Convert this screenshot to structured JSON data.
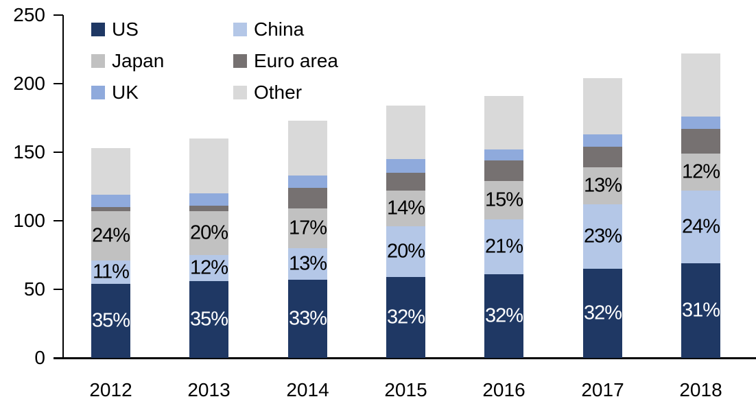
{
  "chart_data": {
    "type": "bar",
    "stacked": true,
    "title": "",
    "xlabel": "",
    "ylabel": "",
    "categories": [
      "2012",
      "2013",
      "2014",
      "2015",
      "2016",
      "2017",
      "2018"
    ],
    "series": [
      {
        "name": "US",
        "color": "#1f3864",
        "values": [
          54,
          56,
          57,
          59,
          61,
          65,
          69
        ],
        "labels": [
          "35%",
          "35%",
          "33%",
          "32%",
          "32%",
          "32%",
          "31%"
        ],
        "label_color": "#ffffff"
      },
      {
        "name": "China",
        "color": "#b4c7e7",
        "values": [
          17,
          19,
          23,
          37,
          40,
          47,
          53
        ],
        "labels": [
          "11%",
          "12%",
          "13%",
          "20%",
          "21%",
          "23%",
          "24%"
        ],
        "label_color": "#000000"
      },
      {
        "name": "Japan",
        "color": "#c1c1c1",
        "values": [
          36,
          32,
          29,
          26,
          28,
          27,
          27
        ],
        "labels": [
          "24%",
          "20%",
          "17%",
          "14%",
          "15%",
          "13%",
          "12%"
        ],
        "label_color": "#000000"
      },
      {
        "name": "Euro area",
        "color": "#767171",
        "values": [
          3,
          4,
          15,
          13,
          15,
          15,
          18
        ],
        "labels": null,
        "label_color": null
      },
      {
        "name": "UK",
        "color": "#8faadc",
        "values": [
          9,
          9,
          9,
          10,
          8,
          9,
          9
        ],
        "labels": null,
        "label_color": null
      },
      {
        "name": "Other",
        "color": "#d9d9d9",
        "values": [
          34,
          40,
          40,
          39,
          39,
          41,
          46
        ],
        "labels": null,
        "label_color": null
      }
    ],
    "totals": [
      153,
      160,
      173,
      184,
      191,
      204,
      222
    ],
    "ylim": [
      0,
      250
    ],
    "yticks": [
      0,
      50,
      100,
      150,
      200,
      250
    ],
    "ytick_labels": [
      "0",
      "50",
      "100",
      "150",
      "200",
      "250"
    ],
    "grid": false,
    "legend_position": "top-left",
    "legend_columns": [
      [
        "US",
        "Japan",
        "UK"
      ],
      [
        "China",
        "Euro area",
        "Other"
      ]
    ],
    "axis_color": "#000000"
  },
  "layout_values": {
    "note": "percent labels shown on US, China and Japan segments only"
  }
}
